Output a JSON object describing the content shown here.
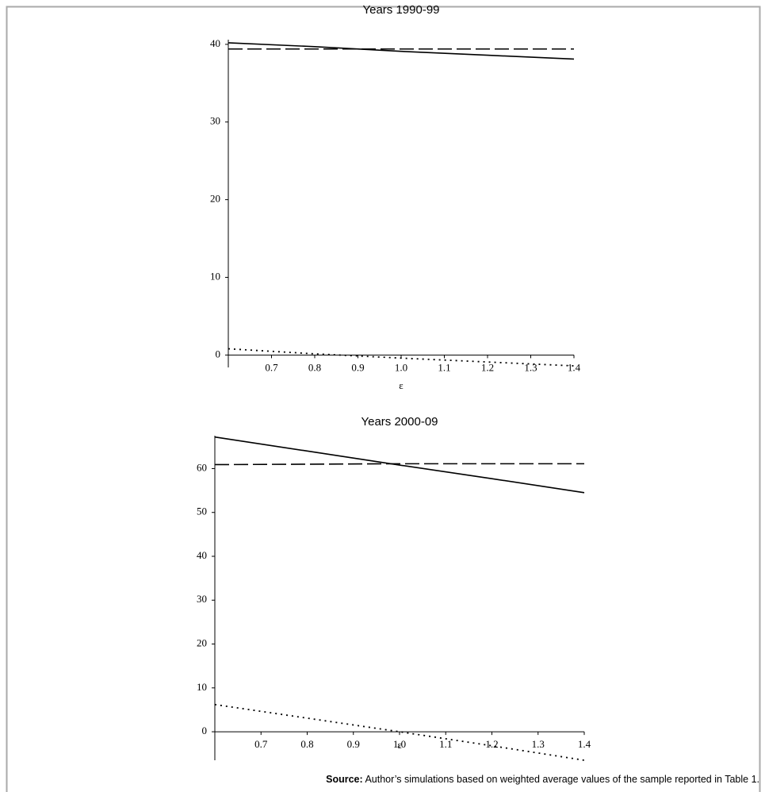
{
  "chart_data": [
    {
      "type": "line",
      "title": "Years 1990-99",
      "x_label": "ε",
      "x": [
        0.6,
        0.8,
        1.0,
        1.2,
        1.4
      ],
      "xlim": [
        0.6,
        1.4
      ],
      "ylim": [
        -1.6,
        40.6
      ],
      "xticks": [
        0.7,
        0.8,
        0.9,
        {
          "value": 1,
          "label": "1.0"
        },
        1.1,
        1.2,
        1.3,
        1.4
      ],
      "yticks": [
        0,
        10,
        20,
        30,
        40
      ],
      "series": [
        {
          "color": "#000000",
          "style": "solid",
          "values": [
            40.2,
            39.7,
            39.1,
            38.6,
            38.1
          ]
        },
        {
          "color": "#000000",
          "style": "dashed",
          "values": [
            39.4,
            39.4,
            39.4,
            39.4,
            39.4
          ]
        },
        {
          "color": "#000000",
          "style": "dotted",
          "values": [
            0.8,
            0.15,
            -0.4,
            -0.9,
            -1.4
          ]
        }
      ]
    },
    {
      "type": "line",
      "title": "Years 2000-09",
      "x_label": "ε",
      "x": [
        0.6,
        0.8,
        1.0,
        1.2,
        1.4
      ],
      "xlim": [
        0.6,
        1.4
      ],
      "ylim": [
        -6.5,
        67.5
      ],
      "xticks": [
        0.7,
        0.8,
        0.9,
        {
          "value": 1,
          "label": "1.0"
        },
        1.1,
        1.2,
        1.3,
        1.4
      ],
      "yticks": [
        0,
        10,
        20,
        30,
        40,
        50,
        60
      ],
      "series": [
        {
          "color": "#000000",
          "style": "solid",
          "values": [
            67.2,
            64.0,
            60.8,
            57.7,
            54.5
          ]
        },
        {
          "color": "#000000",
          "style": "dashed",
          "values": [
            60.9,
            61.0,
            61.1,
            61.1,
            61.1
          ]
        },
        {
          "color": "#000000",
          "style": "dotted",
          "values": [
            6.2,
            3.1,
            0,
            -3.2,
            -6.5
          ]
        }
      ]
    }
  ],
  "note": {
    "label": "Source:",
    "text": " Author’s simulations based on weighted average values of the sample reported in Table 1."
  }
}
